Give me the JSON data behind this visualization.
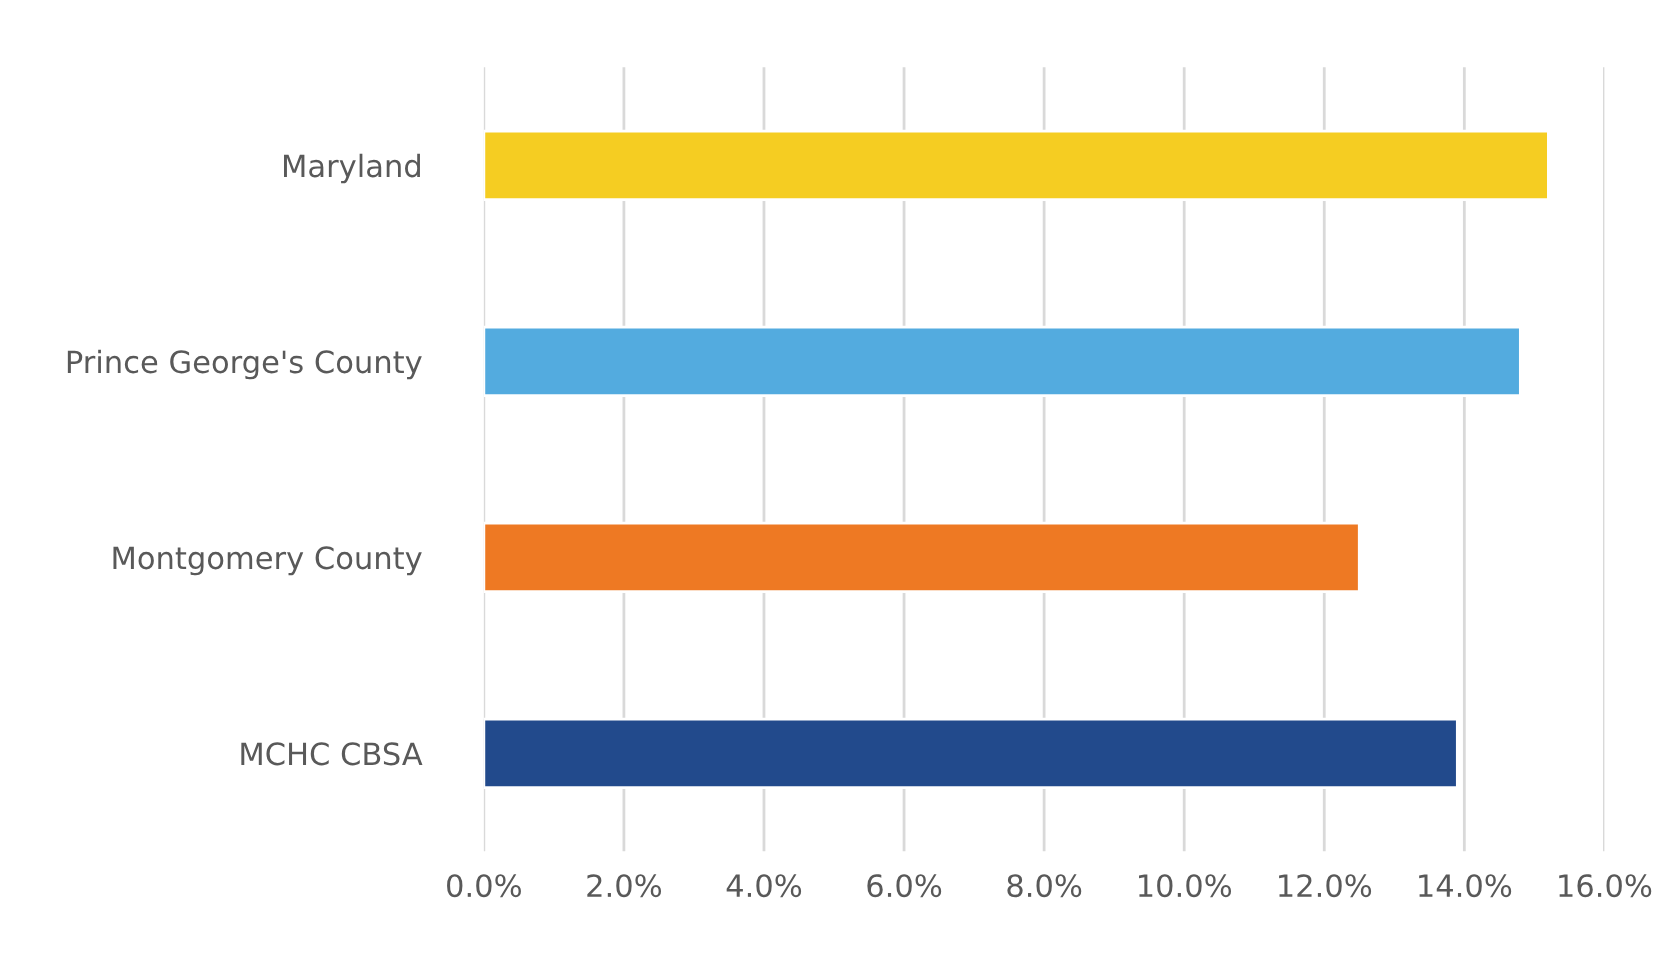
{
  "chart_data": {
    "type": "bar",
    "orientation": "horizontal",
    "categories": [
      "Maryland",
      "Prince George's County",
      "Montgomery County",
      "MCHC CBSA"
    ],
    "values": [
      15.2,
      14.8,
      12.5,
      13.9
    ],
    "colors": [
      "#f5cd22",
      "#53abdf",
      "#ee7923",
      "#224a8c"
    ],
    "xlim": [
      0,
      16
    ],
    "xticks": [
      {
        "value": 0,
        "label": "0.0%"
      },
      {
        "value": 2,
        "label": "2.0%"
      },
      {
        "value": 4,
        "label": "4.0%"
      },
      {
        "value": 6,
        "label": "6.0%"
      },
      {
        "value": 8,
        "label": "8.0%"
      },
      {
        "value": 10,
        "label": "10.0%"
      },
      {
        "value": 12,
        "label": "12.0%"
      },
      {
        "value": 14,
        "label": "14.0%"
      },
      {
        "value": 16,
        "label": "16.0%"
      }
    ],
    "grid": "x"
  }
}
